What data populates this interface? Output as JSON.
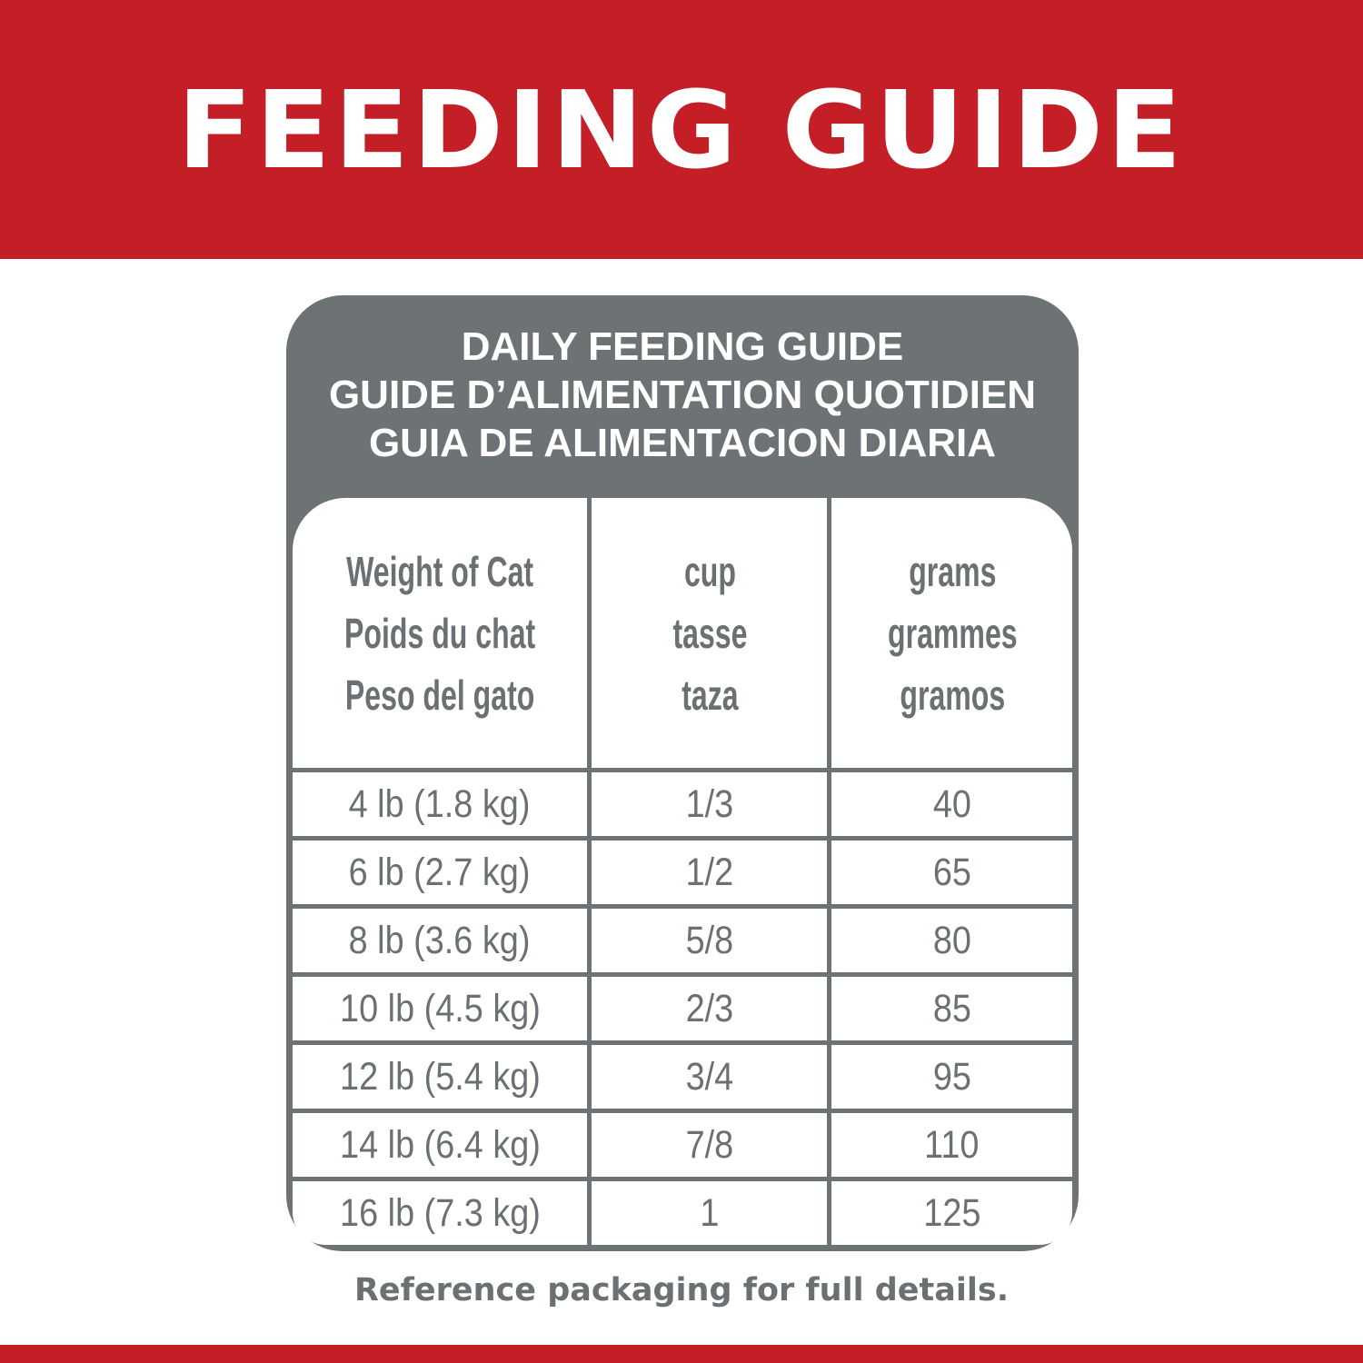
{
  "banner": {
    "title": "FEEDING GUIDE"
  },
  "card": {
    "title_lines": [
      "DAILY FEEDING GUIDE",
      "GUIDE D’ALIMENTATION QUOTIDIEN",
      "GUIA DE ALIMENTACION DIARIA"
    ]
  },
  "table": {
    "headers": [
      [
        "Weight of Cat",
        "Poids du chat",
        "Peso del gato"
      ],
      [
        "cup",
        "tasse",
        "taza"
      ],
      [
        "grams",
        "grammes",
        "gramos"
      ]
    ],
    "rows": [
      [
        "4 lb (1.8 kg)",
        "1/3",
        "40"
      ],
      [
        "6 lb (2.7 kg)",
        "1/2",
        "65"
      ],
      [
        "8 lb (3.6 kg)",
        "5/8",
        "80"
      ],
      [
        "10 lb (4.5 kg)",
        "2/3",
        "85"
      ],
      [
        "12 lb (5.4 kg)",
        "3/4",
        "95"
      ],
      [
        "14 lb (6.4 kg)",
        "7/8",
        "110"
      ],
      [
        "16 lb (7.3 kg)",
        "1",
        "125"
      ]
    ]
  },
  "footer": {
    "note": "Reference packaging for full details."
  },
  "colors": {
    "brand_red": "#c41e27",
    "gray": "#6d7275"
  }
}
